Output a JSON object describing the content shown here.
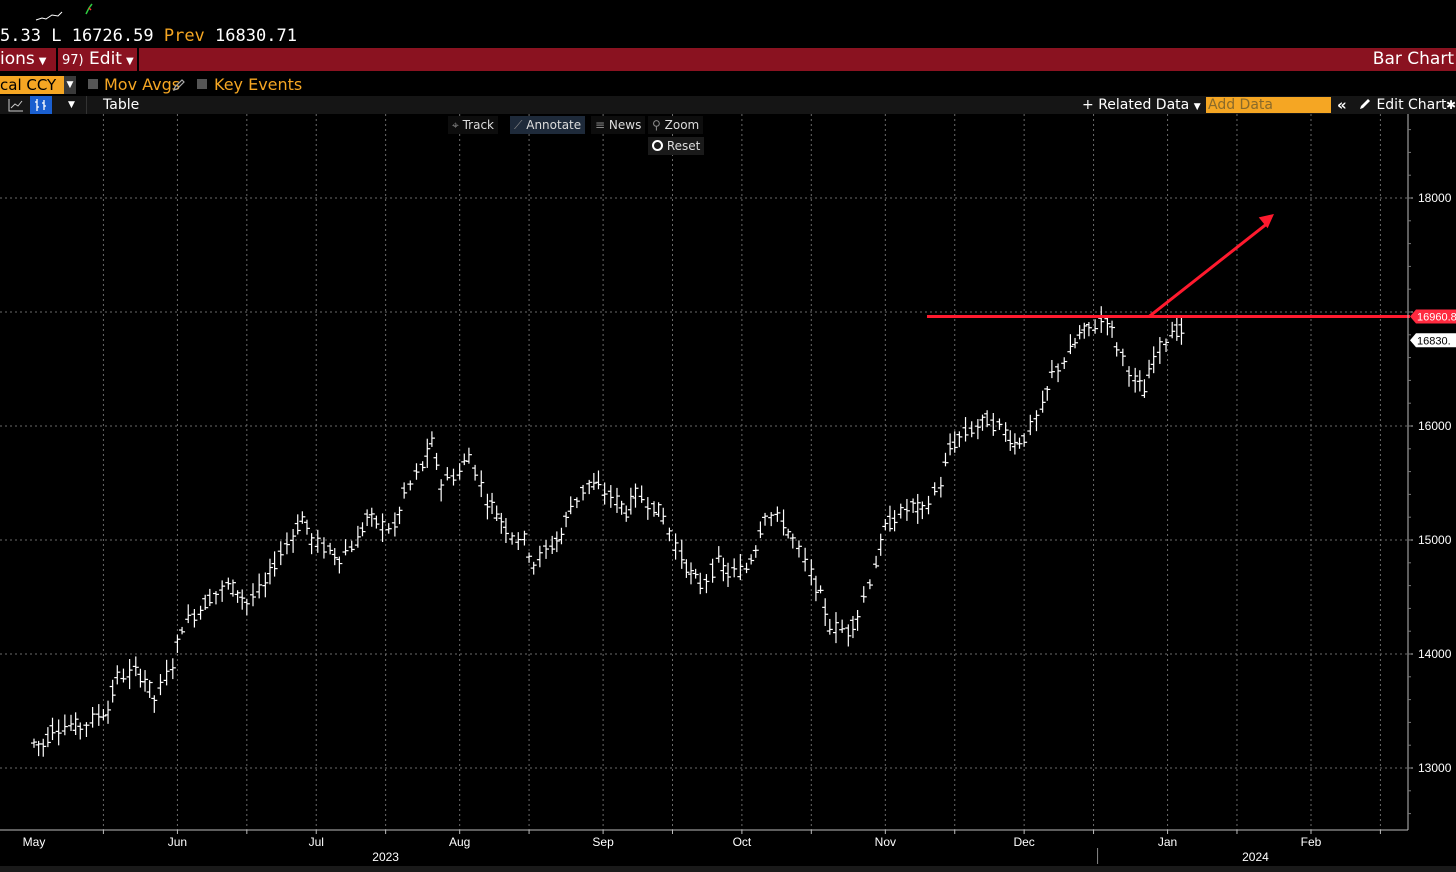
{
  "quote": {
    "high_partial": "5.33",
    "low_label": "L",
    "low_value": "16726.59",
    "prev_label": "Prev",
    "prev_value": "16830.71"
  },
  "menu": {
    "options_label": "ions",
    "edit_number": "97)",
    "edit_label": "Edit",
    "title": "Bar Chart"
  },
  "options": {
    "currency_value": "cal CCY",
    "mov_avgs_label": "Mov Avgs",
    "key_events_label": "Key Events"
  },
  "toolbar": {
    "table_label": "Table",
    "related_data_label": "Related Data",
    "add_data_placeholder": "Add Data",
    "edit_chart_label": "Edit Chart"
  },
  "chart_tools": {
    "track": "Track",
    "annotate": "Annotate",
    "news": "News",
    "zoom": "Zoom",
    "reset": "Reset"
  },
  "colors": {
    "menu_bar": "#8a1220",
    "accent_orange": "#f5a623",
    "annotation_red": "#ff1a2e",
    "price_tag_red": "#ff2a3f"
  },
  "chart_data": {
    "type": "ohlc",
    "x_range": [
      "2023-05-01",
      "2024-02-29"
    ],
    "y_axis": {
      "ticks": [
        13000,
        14000,
        15000,
        16000,
        17000,
        18000
      ],
      "tick_labels": [
        "13000",
        "14000",
        "15000",
        "16000",
        "",
        "18000"
      ],
      "range": [
        12450,
        18800
      ],
      "position": "right"
    },
    "x_ticks": [
      {
        "date": "2023-05-01",
        "label": "May"
      },
      {
        "date": "2023-06-01",
        "label": "Jun"
      },
      {
        "date": "2023-07-01",
        "label": "Jul"
      },
      {
        "date": "2023-08-01",
        "label": "Aug"
      },
      {
        "date": "2023-09-01",
        "label": "Sep"
      },
      {
        "date": "2023-10-01",
        "label": "Oct"
      },
      {
        "date": "2023-11-01",
        "label": "Nov"
      },
      {
        "date": "2023-12-01",
        "label": "Dec"
      },
      {
        "date": "2024-01-01",
        "label": "Jan"
      },
      {
        "date": "2024-02-01",
        "label": "Feb"
      }
    ],
    "year_labels": [
      {
        "date": "2023-07-16",
        "label": "2023"
      },
      {
        "date": "2024-01-20",
        "label": "2024"
      }
    ],
    "grid": true,
    "price_tags": [
      {
        "label": "16960.8",
        "value": 16960.8,
        "style": "red"
      },
      {
        "label": "16830.",
        "value": 16830.71,
        "style": "white"
      }
    ],
    "annotations": {
      "resistance_level": 16960,
      "resistance_from": "2023-11-10",
      "arrow_from": {
        "date": "2023-12-28",
        "value": 16960
      },
      "arrow_to": {
        "date": "2024-01-24",
        "value": 17860
      }
    },
    "series_close": [
      [
        "2023-05-01",
        13220
      ],
      [
        "2023-05-03",
        13200
      ],
      [
        "2023-05-05",
        13350
      ],
      [
        "2023-05-09",
        13380
      ],
      [
        "2023-05-11",
        13360
      ],
      [
        "2023-05-15",
        13460
      ],
      [
        "2023-05-17",
        13520
      ],
      [
        "2023-05-19",
        13800
      ],
      [
        "2023-05-23",
        13840
      ],
      [
        "2023-05-25",
        13790
      ],
      [
        "2023-05-27",
        13600
      ],
      [
        "2023-05-31",
        13920
      ],
      [
        "2023-06-02",
        14250
      ],
      [
        "2023-06-06",
        14400
      ],
      [
        "2023-06-08",
        14500
      ],
      [
        "2023-06-12",
        14600
      ],
      [
        "2023-06-14",
        14560
      ],
      [
        "2023-06-16",
        14450
      ],
      [
        "2023-06-20",
        14600
      ],
      [
        "2023-06-22",
        14800
      ],
      [
        "2023-06-26",
        15050
      ],
      [
        "2023-06-28",
        15200
      ],
      [
        "2023-06-30",
        15000
      ],
      [
        "2023-07-04",
        14900
      ],
      [
        "2023-07-06",
        14850
      ],
      [
        "2023-07-10",
        15000
      ],
      [
        "2023-07-12",
        15200
      ],
      [
        "2023-07-14",
        15150
      ],
      [
        "2023-07-18",
        15100
      ],
      [
        "2023-07-20",
        15400
      ],
      [
        "2023-07-24",
        15650
      ],
      [
        "2023-07-26",
        15850
      ],
      [
        "2023-07-28",
        15500
      ],
      [
        "2023-08-01",
        15600
      ],
      [
        "2023-08-03",
        15750
      ],
      [
        "2023-08-07",
        15350
      ],
      [
        "2023-08-09",
        15250
      ],
      [
        "2023-08-11",
        15100
      ],
      [
        "2023-08-15",
        15000
      ],
      [
        "2023-08-17",
        14800
      ],
      [
        "2023-08-21",
        14950
      ],
      [
        "2023-08-23",
        15050
      ],
      [
        "2023-08-25",
        15300
      ],
      [
        "2023-08-29",
        15500
      ],
      [
        "2023-08-31",
        15450
      ],
      [
        "2023-09-04",
        15350
      ],
      [
        "2023-09-06",
        15250
      ],
      [
        "2023-09-08",
        15400
      ],
      [
        "2023-09-12",
        15300
      ],
      [
        "2023-09-14",
        15200
      ],
      [
        "2023-09-18",
        14850
      ],
      [
        "2023-09-20",
        14700
      ],
      [
        "2023-09-22",
        14600
      ],
      [
        "2023-09-26",
        14800
      ],
      [
        "2023-09-28",
        14700
      ],
      [
        "2023-10-02",
        14750
      ],
      [
        "2023-10-04",
        14950
      ],
      [
        "2023-10-06",
        15250
      ],
      [
        "2023-10-10",
        15150
      ],
      [
        "2023-10-12",
        15000
      ],
      [
        "2023-10-16",
        14700
      ],
      [
        "2023-10-18",
        14500
      ],
      [
        "2023-10-20",
        14250
      ],
      [
        "2023-10-24",
        14200
      ],
      [
        "2023-10-26",
        14350
      ],
      [
        "2023-10-30",
        14800
      ],
      [
        "2023-11-01",
        15100
      ],
      [
        "2023-11-03",
        15200
      ],
      [
        "2023-11-07",
        15300
      ],
      [
        "2023-11-09",
        15250
      ],
      [
        "2023-11-13",
        15500
      ],
      [
        "2023-11-15",
        15800
      ],
      [
        "2023-11-17",
        15900
      ],
      [
        "2023-11-21",
        16000
      ],
      [
        "2023-11-23",
        16050
      ],
      [
        "2023-11-27",
        15950
      ],
      [
        "2023-11-29",
        15850
      ],
      [
        "2023-12-01",
        15900
      ],
      [
        "2023-12-05",
        16150
      ],
      [
        "2023-12-07",
        16450
      ],
      [
        "2023-12-11",
        16650
      ],
      [
        "2023-12-13",
        16800
      ],
      [
        "2023-12-15",
        16850
      ],
      [
        "2023-12-19",
        16950
      ],
      [
        "2023-12-21",
        16700
      ],
      [
        "2023-12-25",
        16400
      ],
      [
        "2023-12-27",
        16300
      ],
      [
        "2023-12-29",
        16600
      ],
      [
        "2024-01-02",
        16850
      ],
      [
        "2024-01-04",
        16830
      ]
    ]
  }
}
